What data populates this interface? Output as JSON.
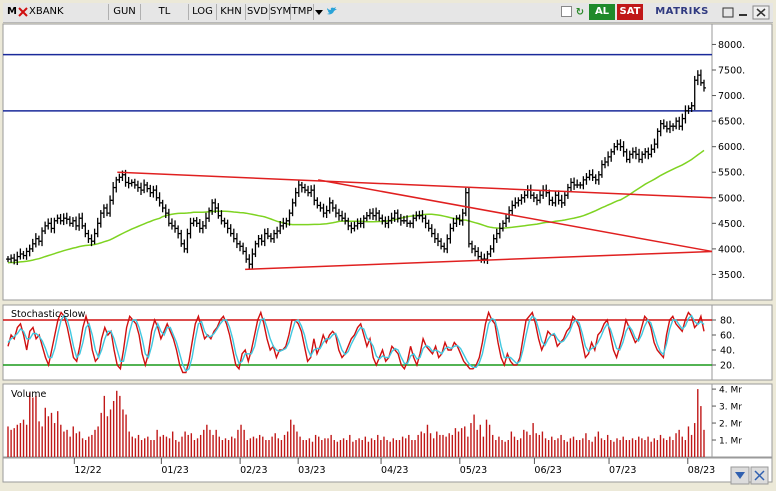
{
  "toolbar": {
    "symbol_prefix": "M",
    "symbol_name": "XBANK",
    "buttons": [
      "GUN",
      "TL",
      "LOG",
      "KHN",
      "SVD",
      "SYM",
      "TMP"
    ],
    "buy_label": "AL",
    "sell_label": "SAT",
    "brand": "MATRIKS",
    "icons": [
      "close-icon",
      "dropdown-arrow-icon",
      "twitter-bird-icon",
      "window-icon",
      "refresh-icon",
      "restore-icon",
      "minimize-icon",
      "close-window-icon"
    ]
  },
  "colors": {
    "price_bar": "#000000",
    "moving_average": "#7ed321",
    "trendline": "#e02020",
    "horizontal_level": "#1a2a9a",
    "stoch_k": "#d01010",
    "stoch_d": "#40c8e0",
    "stoch_band_upper": "#d01010",
    "stoch_band_lower": "#1a9a1a",
    "volume_bar": "#c01818"
  },
  "chart_data": [
    {
      "type": "ohlc",
      "x_tick_labels": [
        "12/22",
        "01/23",
        "02/23",
        "03/23",
        "04/23",
        "05/23",
        "06/23",
        "07/23",
        "08/23"
      ],
      "y_tick_labels": [
        "8000.",
        "7500.",
        "7000.",
        "6500.",
        "6000.",
        "5500.",
        "5000.",
        "4500.",
        "4000.",
        "3500."
      ],
      "ylim": [
        3000,
        8400
      ],
      "grid": false,
      "closes": [
        3800,
        3820,
        3780,
        3850,
        3900,
        3870,
        3950,
        4000,
        4100,
        4200,
        4150,
        4350,
        4450,
        4500,
        4400,
        4550,
        4600,
        4550,
        4600,
        4580,
        4500,
        4550,
        4450,
        4600,
        4450,
        4300,
        4200,
        4150,
        4300,
        4500,
        4700,
        4800,
        4700,
        4950,
        5200,
        5350,
        5400,
        5450,
        5300,
        5280,
        5300,
        5250,
        5200,
        5150,
        5250,
        5180,
        5100,
        5150,
        5000,
        4900,
        4800,
        4700,
        4500,
        4450,
        4400,
        4300,
        4100,
        4000,
        4300,
        4500,
        4550,
        4500,
        4400,
        4450,
        4600,
        4750,
        4900,
        4800,
        4650,
        4550,
        4500,
        4400,
        4300,
        4200,
        4100,
        4050,
        3950,
        3800,
        3700,
        3900,
        4100,
        4200,
        4150,
        4300,
        4250,
        4200,
        4300,
        4350,
        4450,
        4500,
        4550,
        4700,
        4900,
        5100,
        5250,
        5200,
        5150,
        5100,
        5150,
        4950,
        4850,
        4800,
        4700,
        4750,
        4900,
        4800,
        4700,
        4650,
        4600,
        4550,
        4450,
        4400,
        4450,
        4500,
        4500,
        4600,
        4650,
        4700,
        4650,
        4700,
        4600,
        4550,
        4500,
        4550,
        4600,
        4700,
        4600,
        4550,
        4550,
        4500,
        4500,
        4600,
        4650,
        4650,
        4600,
        4500,
        4400,
        4300,
        4200,
        4150,
        4050,
        4000,
        4200,
        4400,
        4500,
        4600,
        4550,
        4700,
        5100,
        4100,
        4000,
        3950,
        3850,
        3800,
        3800,
        3900,
        4000,
        4200,
        4300,
        4400,
        4500,
        4600,
        4750,
        4850,
        4900,
        4950,
        5000,
        5050,
        5150,
        5050,
        5000,
        4950,
        5050,
        5150,
        5100,
        4950,
        4900,
        5050,
        4950,
        4900,
        5050,
        5200,
        5300,
        5250,
        5250,
        5250,
        5350,
        5400,
        5450,
        5400,
        5350,
        5450,
        5650,
        5700,
        5800,
        5900,
        6000,
        6050,
        6000,
        5900,
        5750,
        5850,
        5900,
        5850,
        5750,
        5850,
        5900,
        5850,
        5950,
        6050,
        6300,
        6450,
        6400,
        6350,
        6400,
        6400,
        6500,
        6400,
        6550,
        6700,
        6750,
        6800,
        7300,
        7400,
        7250,
        7150
      ],
      "ma_labels_visible": false,
      "horizontal_levels": [
        7800,
        6700
      ],
      "annotation_lines": [
        {
          "from": [
            "12/22",
            5500
          ],
          "to": [
            "08/23",
            5000
          ]
        },
        {
          "from": [
            "03/23",
            5350
          ],
          "to": [
            "08/23",
            3950
          ]
        },
        {
          "from": [
            "02/23",
            3600
          ],
          "to": [
            "08/23",
            3950
          ]
        }
      ]
    },
    {
      "type": "line",
      "title": "Stochastic.Slow",
      "ylim": [
        0,
        100
      ],
      "y_tick_labels": [
        "80.",
        "60.",
        "40.",
        "20."
      ],
      "bands": [
        80,
        20
      ],
      "series": [
        {
          "values": [
            45,
            60,
            55,
            70,
            75,
            60,
            40,
            65,
            70,
            55,
            60,
            45,
            30,
            20,
            40,
            60,
            80,
            90,
            85,
            70,
            50,
            30,
            25,
            45,
            70,
            85,
            70,
            40,
            25,
            30,
            55,
            70,
            60,
            65,
            40,
            20,
            15,
            40,
            70,
            85,
            80,
            75,
            60,
            35,
            20,
            35,
            65,
            80,
            70,
            55,
            65,
            75,
            65,
            55,
            40,
            20,
            10,
            10,
            25,
            50,
            75,
            85,
            70,
            55,
            60,
            55,
            65,
            70,
            80,
            85,
            75,
            60,
            40,
            20,
            15,
            35,
            40,
            25,
            40,
            60,
            80,
            90,
            75,
            55,
            40,
            45,
            30,
            40,
            40,
            45,
            60,
            80,
            80,
            75,
            65,
            45,
            25,
            30,
            55,
            35,
            45,
            60,
            50,
            60,
            65,
            60,
            40,
            30,
            35,
            45,
            55,
            60,
            70,
            75,
            60,
            45,
            55,
            30,
            20,
            30,
            40,
            25,
            30,
            45,
            40,
            35,
            20,
            15,
            25,
            45,
            30,
            20,
            35,
            55,
            45,
            40,
            35,
            45,
            30,
            35,
            50,
            40,
            40,
            50,
            45,
            35,
            25,
            20,
            15,
            15,
            20,
            30,
            50,
            75,
            90,
            80,
            75,
            50,
            30,
            20,
            35,
            25,
            20,
            20,
            30,
            55,
            80,
            85,
            90,
            75,
            55,
            40,
            50,
            65,
            60,
            60,
            45,
            50,
            55,
            65,
            70,
            85,
            80,
            70,
            50,
            30,
            35,
            50,
            40,
            60,
            65,
            75,
            80,
            60,
            40,
            30,
            45,
            60,
            80,
            70,
            60,
            50,
            55,
            70,
            85,
            80,
            70,
            50,
            40,
            35,
            30,
            60,
            80,
            85,
            75,
            70,
            65,
            80,
            90,
            85,
            70,
            75,
            85,
            65
          ]
        },
        {
          "values": [
            50,
            55,
            58,
            62,
            68,
            65,
            55,
            55,
            62,
            62,
            58,
            52,
            42,
            30,
            30,
            42,
            62,
            80,
            86,
            80,
            65,
            45,
            30,
            35,
            50,
            70,
            75,
            60,
            40,
            30,
            40,
            55,
            65,
            65,
            55,
            40,
            25,
            25,
            45,
            65,
            80,
            80,
            70,
            55,
            35,
            30,
            45,
            65,
            75,
            65,
            60,
            70,
            70,
            60,
            50,
            35,
            20,
            12,
            15,
            30,
            55,
            75,
            78,
            65,
            58,
            58,
            62,
            68,
            75,
            80,
            80,
            70,
            55,
            35,
            22,
            25,
            35,
            35,
            35,
            45,
            65,
            80,
            82,
            70,
            55,
            45,
            40,
            38,
            40,
            42,
            50,
            65,
            78,
            80,
            72,
            60,
            42,
            32,
            40,
            42,
            42,
            50,
            55,
            55,
            60,
            62,
            52,
            40,
            34,
            38,
            48,
            56,
            64,
            70,
            68,
            56,
            52,
            45,
            32,
            28,
            32,
            30,
            30,
            38,
            42,
            40,
            30,
            22,
            22,
            32,
            35,
            28,
            30,
            42,
            46,
            44,
            38,
            40,
            38,
            35,
            42,
            44,
            42,
            45,
            46,
            42,
            34,
            26,
            20,
            17,
            17,
            23,
            35,
            55,
            75,
            82,
            80,
            65,
            45,
            30,
            30,
            30,
            26,
            22,
            25,
            40,
            60,
            78,
            85,
            82,
            68,
            52,
            46,
            54,
            60,
            62,
            55,
            50,
            52,
            58,
            65,
            76,
            80,
            76,
            62,
            45,
            38,
            42,
            44,
            50,
            58,
            68,
            75,
            68,
            55,
            42,
            40,
            50,
            65,
            72,
            66,
            56,
            52,
            60,
            72,
            80,
            76,
            62,
            48,
            38,
            34,
            48,
            68,
            80,
            80,
            74,
            68,
            72,
            82,
            86,
            78,
            74,
            78,
            74
          ]
        }
      ]
    },
    {
      "type": "bar",
      "title": "Volume",
      "y_tick_labels": [
        "4. Mr",
        "3. Mr",
        "2. Mr",
        "1. Mr"
      ],
      "unit": "Mr",
      "ylim": [
        0,
        4.3
      ],
      "values": [
        1.8,
        1.6,
        1.7,
        1.9,
        2.0,
        2.2,
        1.9,
        3.8,
        3.5,
        3.6,
        2.1,
        1.8,
        2.9,
        2.4,
        2.6,
        2.0,
        2.7,
        1.9,
        1.5,
        1.6,
        1.2,
        1.8,
        1.4,
        1.5,
        1.1,
        1.0,
        1.2,
        1.3,
        1.6,
        1.8,
        2.6,
        3.6,
        2.4,
        2.8,
        3.3,
        3.9,
        3.6,
        2.8,
        2.5,
        1.5,
        1.2,
        1.1,
        1.3,
        1.0,
        1.1,
        1.2,
        1.0,
        1.0,
        1.6,
        1.2,
        1.3,
        1.2,
        1.1,
        1.5,
        1.0,
        0.9,
        1.2,
        1.5,
        1.3,
        1.4,
        1.0,
        1.1,
        1.3,
        1.6,
        1.9,
        1.6,
        1.3,
        1.6,
        1.2,
        1.0,
        1.1,
        1.0,
        1.2,
        1.1,
        1.6,
        1.9,
        1.6,
        1.0,
        1.1,
        1.2,
        1.1,
        1.3,
        1.2,
        1.0,
        1.0,
        1.2,
        1.4,
        1.1,
        1.0,
        1.3,
        1.5,
        2.2,
        1.9,
        1.5,
        1.2,
        1.0,
        1.0,
        1.1,
        0.9,
        1.3,
        1.2,
        1.0,
        1.1,
        1.1,
        1.3,
        1.0,
        0.9,
        1.0,
        1.1,
        1.0,
        1.3,
        0.9,
        1.0,
        1.1,
        1.0,
        1.2,
        0.9,
        1.1,
        1.0,
        1.3,
        1.0,
        1.2,
        1.0,
        0.9,
        1.1,
        1.0,
        1.0,
        1.2,
        1.1,
        1.3,
        1.0,
        1.0,
        1.3,
        1.5,
        1.4,
        1.9,
        1.4,
        1.1,
        1.5,
        1.3,
        1.3,
        1.2,
        1.4,
        1.3,
        1.7,
        1.5,
        1.7,
        1.8,
        1.2,
        2.0,
        2.5,
        1.6,
        1.9,
        1.2,
        2.2,
        1.9,
        1.3,
        1.0,
        1.2,
        1.0,
        0.9,
        1.0,
        1.5,
        1.2,
        1.0,
        1.1,
        1.6,
        1.5,
        1.3,
        2.0,
        1.4,
        1.3,
        1.5,
        1.1,
        1.0,
        1.2,
        1.0,
        1.1,
        1.3,
        1.0,
        0.9,
        1.1,
        1.2,
        1.0,
        1.0,
        1.1,
        1.4,
        1.0,
        0.9,
        1.2,
        1.5,
        1.1,
        1.0,
        1.3,
        1.0,
        0.9,
        1.1,
        1.0,
        1.2,
        1.0,
        1.0,
        1.1,
        1.0,
        1.2,
        1.1,
        1.0,
        1.2,
        0.9,
        1.1,
        1.0,
        1.3,
        1.1,
        1.0,
        1.2,
        1.0,
        1.4,
        1.6,
        1.2,
        1.0,
        1.8,
        1.3,
        2.0,
        4.0,
        3.0,
        1.6
      ]
    }
  ]
}
